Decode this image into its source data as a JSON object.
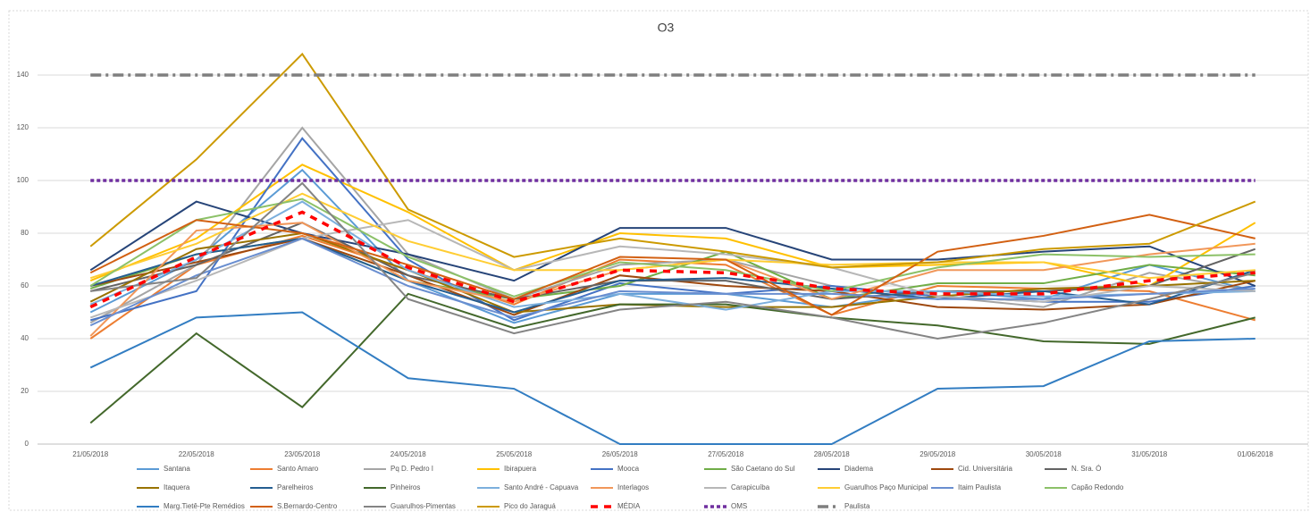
{
  "chart_data": {
    "type": "line",
    "title": "O3",
    "categories": [
      "21/05/2018",
      "22/05/2018",
      "23/05/2018",
      "24/05/2018",
      "25/05/2018",
      "26/05/2018",
      "27/05/2018",
      "28/05/2018",
      "29/05/2018",
      "30/05/2018",
      "31/05/2018",
      "01/06/2018"
    ],
    "ylim": [
      0,
      160
    ],
    "yticks": [
      0,
      20,
      40,
      60,
      80,
      100,
      120,
      140
    ],
    "grid": true,
    "series": [
      {
        "name": "Santana",
        "color": "#5b9bd5",
        "values": [
          50,
          70,
          104,
          62,
          46,
          57,
          57,
          52,
          58,
          55,
          68,
          58
        ]
      },
      {
        "name": "Santo Amaro",
        "color": "#ed7d31",
        "values": [
          40,
          68,
          79,
          66,
          53,
          70,
          68,
          49,
          60,
          59,
          58,
          47
        ]
      },
      {
        "name": "Pq D. Pedro I",
        "color": "#a5a5a5",
        "values": [
          46,
          68,
          120,
          72,
          55,
          68,
          70,
          60,
          56,
          52,
          65,
          58
        ]
      },
      {
        "name": "Ibirapuera",
        "color": "#ffc000",
        "values": [
          62,
          78,
          106,
          88,
          66,
          80,
          78,
          67,
          68,
          69,
          60,
          84
        ]
      },
      {
        "name": "Mooca",
        "color": "#4472c4",
        "values": [
          47,
          58,
          116,
          70,
          47,
          61,
          57,
          60,
          56,
          54,
          54,
          60
        ]
      },
      {
        "name": "São Caetano do Sul",
        "color": "#70ad47",
        "values": [
          59,
          72,
          78,
          62,
          55,
          60,
          73,
          55,
          61,
          61,
          68,
          64
        ]
      },
      {
        "name": "Diadema",
        "color": "#264478",
        "values": [
          66,
          92,
          80,
          72,
          62,
          82,
          82,
          70,
          70,
          73,
          75,
          60
        ]
      },
      {
        "name": "Cid. Universitária",
        "color": "#9e480e",
        "values": [
          60,
          69,
          78,
          64,
          49,
          64,
          60,
          58,
          52,
          51,
          53,
          62
        ]
      },
      {
        "name": "N. Sra. Ó",
        "color": "#636363",
        "values": [
          58,
          68,
          84,
          64,
          55,
          62,
          62,
          55,
          58,
          58,
          60,
          74
        ]
      },
      {
        "name": "Itaquera",
        "color": "#997300",
        "values": [
          54,
          74,
          80,
          66,
          50,
          53,
          52,
          52,
          56,
          59,
          60,
          62
        ]
      },
      {
        "name": "Parelheiros",
        "color": "#255e91",
        "values": [
          60,
          72,
          78,
          62,
          50,
          62,
          63,
          59,
          55,
          58,
          53,
          66
        ]
      },
      {
        "name": "Pinheiros",
        "color": "#43682b",
        "values": [
          8,
          42,
          14,
          57,
          44,
          53,
          53,
          48,
          45,
          39,
          38,
          48
        ]
      },
      {
        "name": "Santo André - Capuava",
        "color": "#7cafdd",
        "values": [
          53,
          70,
          92,
          66,
          52,
          57,
          51,
          58,
          58,
          56,
          57,
          58
        ]
      },
      {
        "name": "Interlagos",
        "color": "#f1975a",
        "values": [
          41,
          81,
          84,
          62,
          54,
          66,
          70,
          55,
          66,
          66,
          72,
          76
        ]
      },
      {
        "name": "Carapicuíba",
        "color": "#b7b7b7",
        "values": [
          48,
          62,
          78,
          85,
          66,
          75,
          72,
          67,
          56,
          54,
          60,
          58
        ]
      },
      {
        "name": "Guarulhos Paço Municipal",
        "color": "#ffcd33",
        "values": [
          63,
          76,
          95,
          77,
          66,
          66,
          70,
          68,
          69,
          69,
          63,
          66
        ]
      },
      {
        "name": "Itaim Paulista",
        "color": "#698ed0",
        "values": [
          45,
          64,
          78,
          60,
          48,
          58,
          57,
          57,
          55,
          55,
          57,
          59
        ]
      },
      {
        "name": "Capão Redondo",
        "color": "#8cc168",
        "values": [
          60,
          85,
          93,
          71,
          56,
          69,
          66,
          58,
          67,
          72,
          71,
          72
        ]
      },
      {
        "name": "Marg.Tietê-Pte Remédios",
        "color": "#327dc2",
        "values": [
          29,
          48,
          50,
          25,
          21,
          0,
          0,
          0,
          21,
          22,
          39,
          40
        ]
      },
      {
        "name": "S.Bernardo-Centro",
        "color": "#d26012",
        "values": [
          65,
          85,
          80,
          68,
          55,
          71,
          70,
          49,
          73,
          79,
          87,
          78
        ]
      },
      {
        "name": "Guarulhos-Pimentas",
        "color": "#848484",
        "values": [
          58,
          63,
          99,
          55,
          42,
          51,
          54,
          48,
          40,
          46,
          55,
          65
        ]
      },
      {
        "name": "Pico do Jaraguá",
        "color": "#cc9a00",
        "values": [
          75,
          108,
          148,
          89,
          71,
          78,
          73,
          67,
          69,
          74,
          76,
          92
        ]
      },
      {
        "name": "MÉDIA",
        "color": "#ff0000",
        "dash": "8,7",
        "values": [
          52,
          71,
          88,
          67,
          54,
          66,
          65,
          59,
          57,
          57,
          62,
          65
        ]
      },
      {
        "name": "OMS",
        "color": "#7030a0",
        "dash": "4,3",
        "values": [
          100,
          100,
          100,
          100,
          100,
          100,
          100,
          100,
          100,
          100,
          100,
          100
        ]
      },
      {
        "name": "Paulista",
        "color": "#7f7f7f",
        "dash": "12,5,3,5",
        "values": [
          140,
          140,
          140,
          140,
          140,
          140,
          140,
          140,
          140,
          140,
          140,
          140
        ]
      }
    ]
  }
}
